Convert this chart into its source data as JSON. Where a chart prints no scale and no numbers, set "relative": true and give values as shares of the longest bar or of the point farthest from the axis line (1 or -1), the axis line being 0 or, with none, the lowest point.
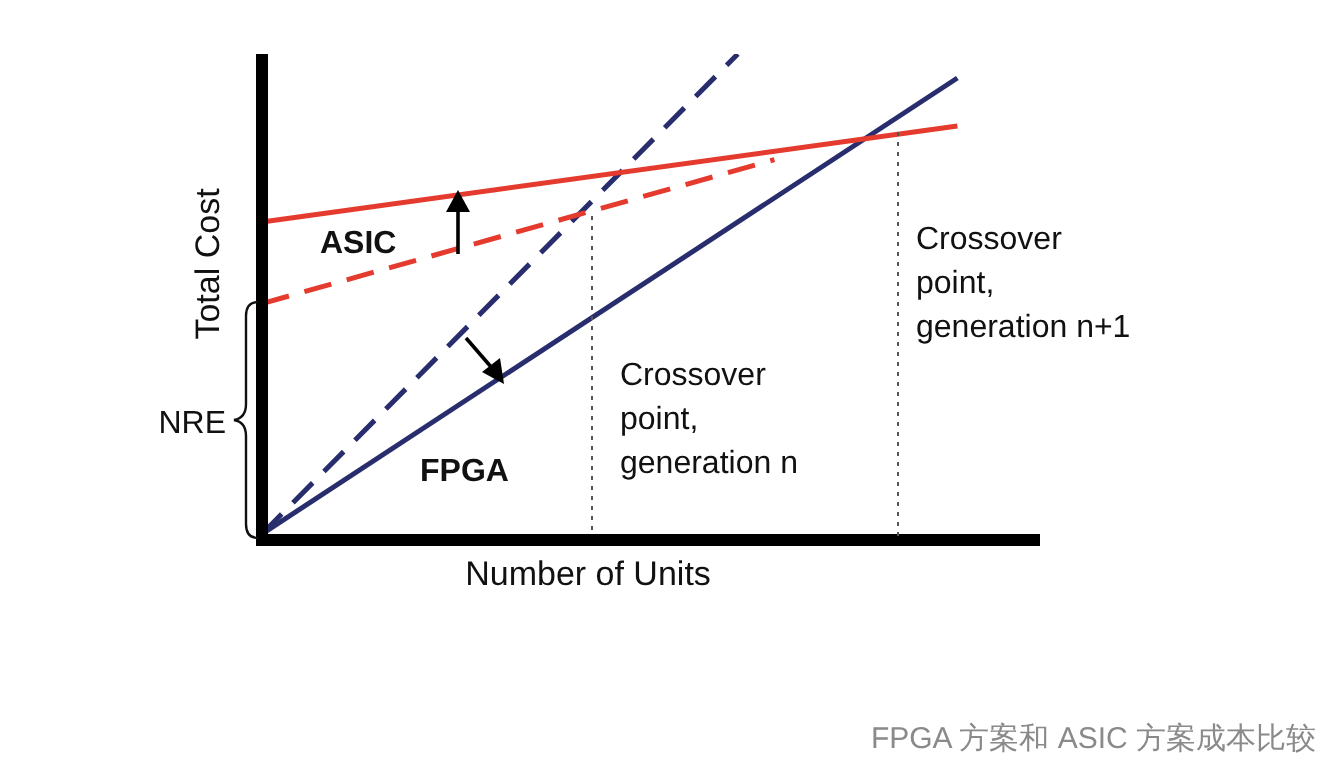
{
  "chart_data": {
    "type": "line",
    "relative": true,
    "xlabel": "Number of Units",
    "ylabel": "Total Cost",
    "legend": false,
    "marker": "none",
    "categories": [
      null,
      null,
      null,
      null,
      null,
      null,
      null,
      null,
      null,
      null,
      null,
      null,
      null,
      null,
      null,
      null,
      null,
      null,
      null,
      null,
      null
    ],
    "series": [
      {
        "color": "#e53b2e",
        "line_style": "solid",
        "values": [
          0.65,
          null,
          null,
          null,
          null,
          null,
          null,
          null,
          null,
          null,
          null,
          null,
          null,
          null,
          null,
          null,
          null,
          null,
          null,
          0.85,
          null
        ]
      },
      {
        "color": "#e53b2e",
        "line_style": "dashed",
        "values": [
          0.48,
          null,
          null,
          null,
          null,
          null,
          null,
          null,
          null,
          null,
          null,
          null,
          null,
          null,
          0.78,
          null,
          null,
          null,
          null,
          null,
          null
        ]
      },
      {
        "color": "#282d6e",
        "line_style": "solid",
        "values": [
          0,
          null,
          null,
          null,
          null,
          null,
          null,
          null,
          null,
          null,
          null,
          null,
          null,
          null,
          null,
          null,
          null,
          null,
          null,
          0.95,
          null
        ]
      },
      {
        "color": "#282d6e",
        "line_style": "dashed",
        "values": [
          0,
          null,
          null,
          null,
          null,
          null,
          null,
          null,
          null,
          null,
          null,
          null,
          null,
          1,
          null,
          null,
          null,
          null,
          null,
          null,
          null
        ]
      }
    ],
    "annotations": [
      "ASIC",
      "FPGA",
      "Crossover\npoint,\ngeneration n",
      "Crossover\npoint,\ngeneration n+1",
      "NRE",
      "FPGA 方案和 ASIC 方案成本比较"
    ]
  }
}
